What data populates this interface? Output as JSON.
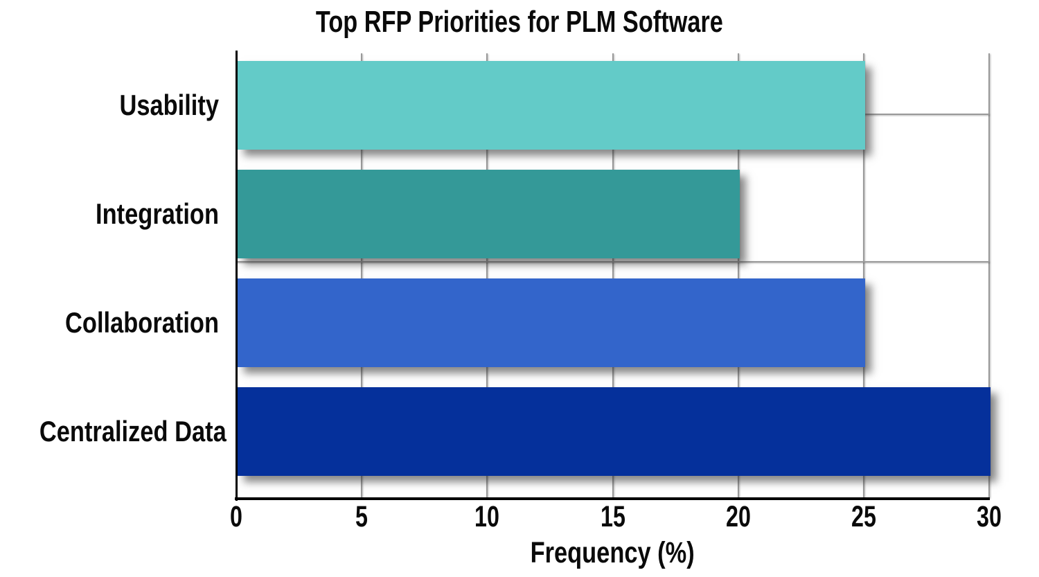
{
  "chart_data": {
    "type": "bar",
    "orientation": "horizontal",
    "title": "Top RFP Priorities for PLM Software",
    "xlabel": "Frequency (%)",
    "ylabel": "",
    "categories": [
      "Usability",
      "Integration",
      "Collaboration",
      "Centralized Data"
    ],
    "values": [
      25,
      20,
      25,
      30
    ],
    "xlim": [
      0,
      30
    ],
    "xticks": [
      0,
      5,
      10,
      15,
      20,
      25,
      30
    ],
    "xtick_labels": [
      "0",
      "5",
      "10",
      "15",
      "20",
      "25",
      "30"
    ],
    "grid": "on",
    "legend": "none",
    "bar_colors": [
      "#63CBC8",
      "#349998",
      "#3365CB",
      "#05309B"
    ],
    "gridline_color": "#9A9A9A",
    "axis_color": "#000000",
    "text_color": "#0A0A0A",
    "background_color": "#FFFFFF"
  }
}
